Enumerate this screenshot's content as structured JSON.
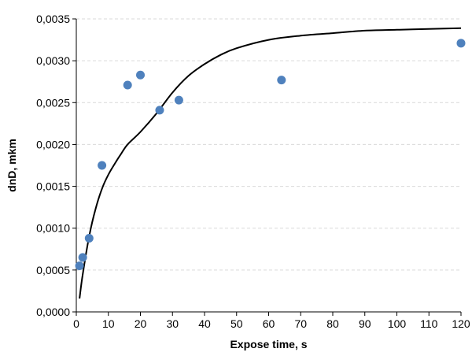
{
  "chart_data": {
    "type": "scatter",
    "title": "",
    "xlabel": "Expose time, s",
    "ylabel": "dnD, mkm",
    "xlim": [
      0,
      120
    ],
    "ylim": [
      0,
      0.0035
    ],
    "x_ticks": [
      "0",
      "10",
      "20",
      "30",
      "40",
      "50",
      "60",
      "70",
      "80",
      "90",
      "100",
      "110",
      "120"
    ],
    "y_ticks": [
      "0,0000",
      "0,0005",
      "0,0010",
      "0,0015",
      "0,0020",
      "0,0025",
      "0,0030",
      "0,0035"
    ],
    "grid": {
      "horizontal": true,
      "vertical": false
    },
    "legend": "none",
    "series": [
      {
        "kind": "points",
        "color": "#4f81bd",
        "points": [
          {
            "x": 1,
            "y": 0.00055
          },
          {
            "x": 2,
            "y": 0.00065
          },
          {
            "x": 4,
            "y": 0.00088
          },
          {
            "x": 8,
            "y": 0.00175
          },
          {
            "x": 16,
            "y": 0.00271
          },
          {
            "x": 20,
            "y": 0.00283
          },
          {
            "x": 26,
            "y": 0.00241
          },
          {
            "x": 32,
            "y": 0.00253
          },
          {
            "x": 64,
            "y": 0.00277
          },
          {
            "x": 120,
            "y": 0.00321
          }
        ]
      },
      {
        "kind": "fit-curve",
        "color": "#000000",
        "points": [
          {
            "x": 1,
            "y": 0.00016
          },
          {
            "x": 2,
            "y": 0.00045
          },
          {
            "x": 4,
            "y": 0.0009
          },
          {
            "x": 6,
            "y": 0.00123
          },
          {
            "x": 8,
            "y": 0.00147
          },
          {
            "x": 10,
            "y": 0.00164
          },
          {
            "x": 12,
            "y": 0.00177
          },
          {
            "x": 14,
            "y": 0.00189
          },
          {
            "x": 16,
            "y": 0.002
          },
          {
            "x": 20,
            "y": 0.00215
          },
          {
            "x": 25,
            "y": 0.00237
          },
          {
            "x": 30,
            "y": 0.00262
          },
          {
            "x": 35,
            "y": 0.00282
          },
          {
            "x": 40,
            "y": 0.00296
          },
          {
            "x": 45,
            "y": 0.00307
          },
          {
            "x": 50,
            "y": 0.00315
          },
          {
            "x": 60,
            "y": 0.00325
          },
          {
            "x": 70,
            "y": 0.0033
          },
          {
            "x": 80,
            "y": 0.00333
          },
          {
            "x": 90,
            "y": 0.00336
          },
          {
            "x": 100,
            "y": 0.00337
          },
          {
            "x": 110,
            "y": 0.00338
          },
          {
            "x": 120,
            "y": 0.00339
          }
        ]
      }
    ]
  }
}
